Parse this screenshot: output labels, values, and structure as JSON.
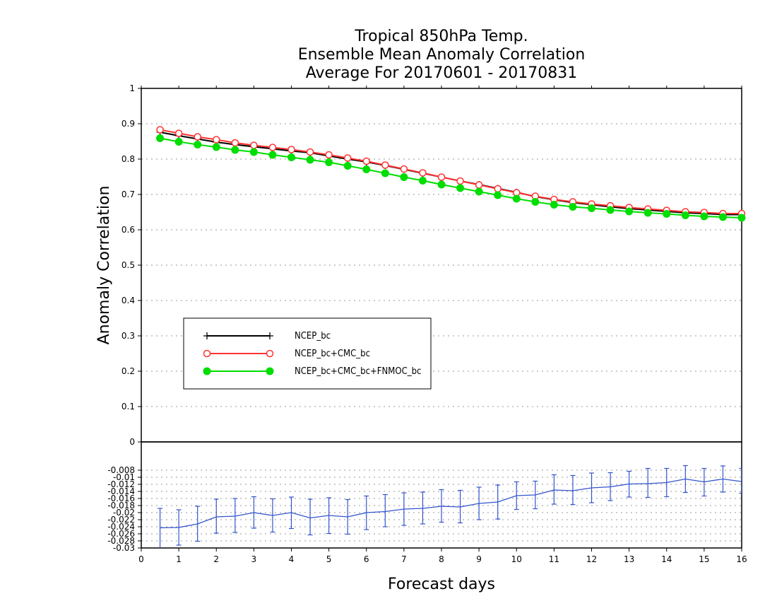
{
  "chart_data": [
    {
      "type": "line",
      "title": [
        "Tropical 850hPa Temp.",
        "Ensemble Mean Anomaly Correlation",
        "Average For 20170601 - 20170831"
      ],
      "ylabel": "Anomaly Correlation",
      "xlabel": "",
      "ylim": [
        0,
        1
      ],
      "yticks": [
        "0",
        "0.1",
        "0.2",
        "0.3",
        "0.4",
        "0.5",
        "0.6",
        "0.7",
        "0.8",
        "0.9",
        "1"
      ],
      "grid": true,
      "legend_position": "lower-left",
      "x": [
        0.5,
        1,
        1.5,
        2,
        2.5,
        3,
        3.5,
        4,
        4.5,
        5,
        5.5,
        6,
        6.5,
        7,
        7.5,
        8,
        8.5,
        9,
        9.5,
        10,
        10.5,
        11,
        11.5,
        12,
        12.5,
        13,
        13.5,
        14,
        14.5,
        15,
        15.5,
        16
      ],
      "series": [
        {
          "name": "NCEP_bc",
          "color": "#000000",
          "marker": "plus",
          "values": [
            0.876,
            0.866,
            0.857,
            0.848,
            0.841,
            0.835,
            0.829,
            0.823,
            0.818,
            0.809,
            0.8,
            0.792,
            0.782,
            0.771,
            0.76,
            0.749,
            0.738,
            0.728,
            0.717,
            0.706,
            0.694,
            0.685,
            0.677,
            0.671,
            0.665,
            0.66,
            0.656,
            0.652,
            0.648,
            0.646,
            0.643,
            0.643
          ]
        },
        {
          "name": "NCEP_bc+CMC_bc",
          "color": "#ff3333",
          "marker": "open-circle",
          "values": [
            0.883,
            0.873,
            0.863,
            0.855,
            0.846,
            0.839,
            0.833,
            0.827,
            0.82,
            0.812,
            0.803,
            0.794,
            0.783,
            0.772,
            0.761,
            0.749,
            0.738,
            0.727,
            0.716,
            0.705,
            0.695,
            0.686,
            0.679,
            0.673,
            0.668,
            0.663,
            0.659,
            0.655,
            0.651,
            0.649,
            0.646,
            0.646
          ]
        },
        {
          "name": "NCEP_bc+CMC_bc+FNMOC_bc",
          "color": "#00dd00",
          "marker": "filled-circle",
          "values": [
            0.859,
            0.849,
            0.841,
            0.834,
            0.826,
            0.82,
            0.812,
            0.805,
            0.798,
            0.791,
            0.781,
            0.771,
            0.76,
            0.749,
            0.739,
            0.728,
            0.718,
            0.708,
            0.698,
            0.688,
            0.679,
            0.671,
            0.665,
            0.661,
            0.656,
            0.652,
            0.648,
            0.645,
            0.641,
            0.638,
            0.636,
            0.634
          ]
        }
      ]
    },
    {
      "type": "line",
      "title": "",
      "ylabel": "",
      "xlabel": "Forecast days",
      "xlim": [
        0,
        16
      ],
      "xticks": [
        "0",
        "1",
        "2",
        "3",
        "4",
        "5",
        "6",
        "7",
        "8",
        "9",
        "10",
        "11",
        "12",
        "13",
        "14",
        "15",
        "16"
      ],
      "ylim": [
        -0.03,
        0
      ],
      "yticks": [
        "-0.03",
        "-0.028",
        "-0.026",
        "-0.024",
        "-0.022",
        "-0.02",
        "-0.018",
        "-0.016",
        "-0.014",
        "-0.012",
        "-0.01",
        "-0.008",
        "0"
      ],
      "grid": true,
      "x": [
        0.5,
        1,
        1.5,
        2,
        2.5,
        3,
        3.5,
        4,
        4.5,
        5,
        5.5,
        6,
        6.5,
        7,
        7.5,
        8,
        8.5,
        9,
        9.5,
        10,
        10.5,
        11,
        11.5,
        12,
        12.5,
        13,
        13.5,
        14,
        14.5,
        15,
        15.5,
        16
      ],
      "series": [
        {
          "color": "#3355cc",
          "marker": "error-bar",
          "values": [
            -0.0243,
            -0.0242,
            -0.0232,
            -0.0212,
            -0.021,
            -0.02,
            -0.0208,
            -0.02,
            -0.0215,
            -0.0208,
            -0.0212,
            -0.02,
            -0.0197,
            -0.019,
            -0.0188,
            -0.0182,
            -0.0184,
            -0.0174,
            -0.017,
            -0.0152,
            -0.015,
            -0.0136,
            -0.0138,
            -0.013,
            -0.0127,
            -0.0119,
            -0.0118,
            -0.0115,
            -0.0105,
            -0.0113,
            -0.0105,
            -0.0112
          ],
          "upper": [
            -0.0188,
            -0.0192,
            -0.0182,
            -0.0162,
            -0.016,
            -0.0155,
            -0.0161,
            -0.0156,
            -0.0162,
            -0.0158,
            -0.0163,
            -0.0153,
            -0.0149,
            -0.0144,
            -0.0142,
            -0.0135,
            -0.0137,
            -0.0128,
            -0.0122,
            -0.0113,
            -0.0111,
            -0.0093,
            -0.0095,
            -0.0088,
            -0.0087,
            -0.0083,
            -0.0075,
            -0.0075,
            -0.0067,
            -0.0075,
            -0.0068,
            -0.0075
          ],
          "lower": [
            -0.0305,
            -0.0292,
            -0.0281,
            -0.0258,
            -0.0256,
            -0.0244,
            -0.0255,
            -0.0245,
            -0.0263,
            -0.0259,
            -0.0261,
            -0.0248,
            -0.024,
            -0.0236,
            -0.0232,
            -0.0227,
            -0.0229,
            -0.022,
            -0.0218,
            -0.0191,
            -0.0189,
            -0.0176,
            -0.0177,
            -0.0172,
            -0.0166,
            -0.0156,
            -0.0157,
            -0.0155,
            -0.0143,
            -0.0153,
            -0.0142,
            -0.0145
          ]
        }
      ]
    }
  ]
}
